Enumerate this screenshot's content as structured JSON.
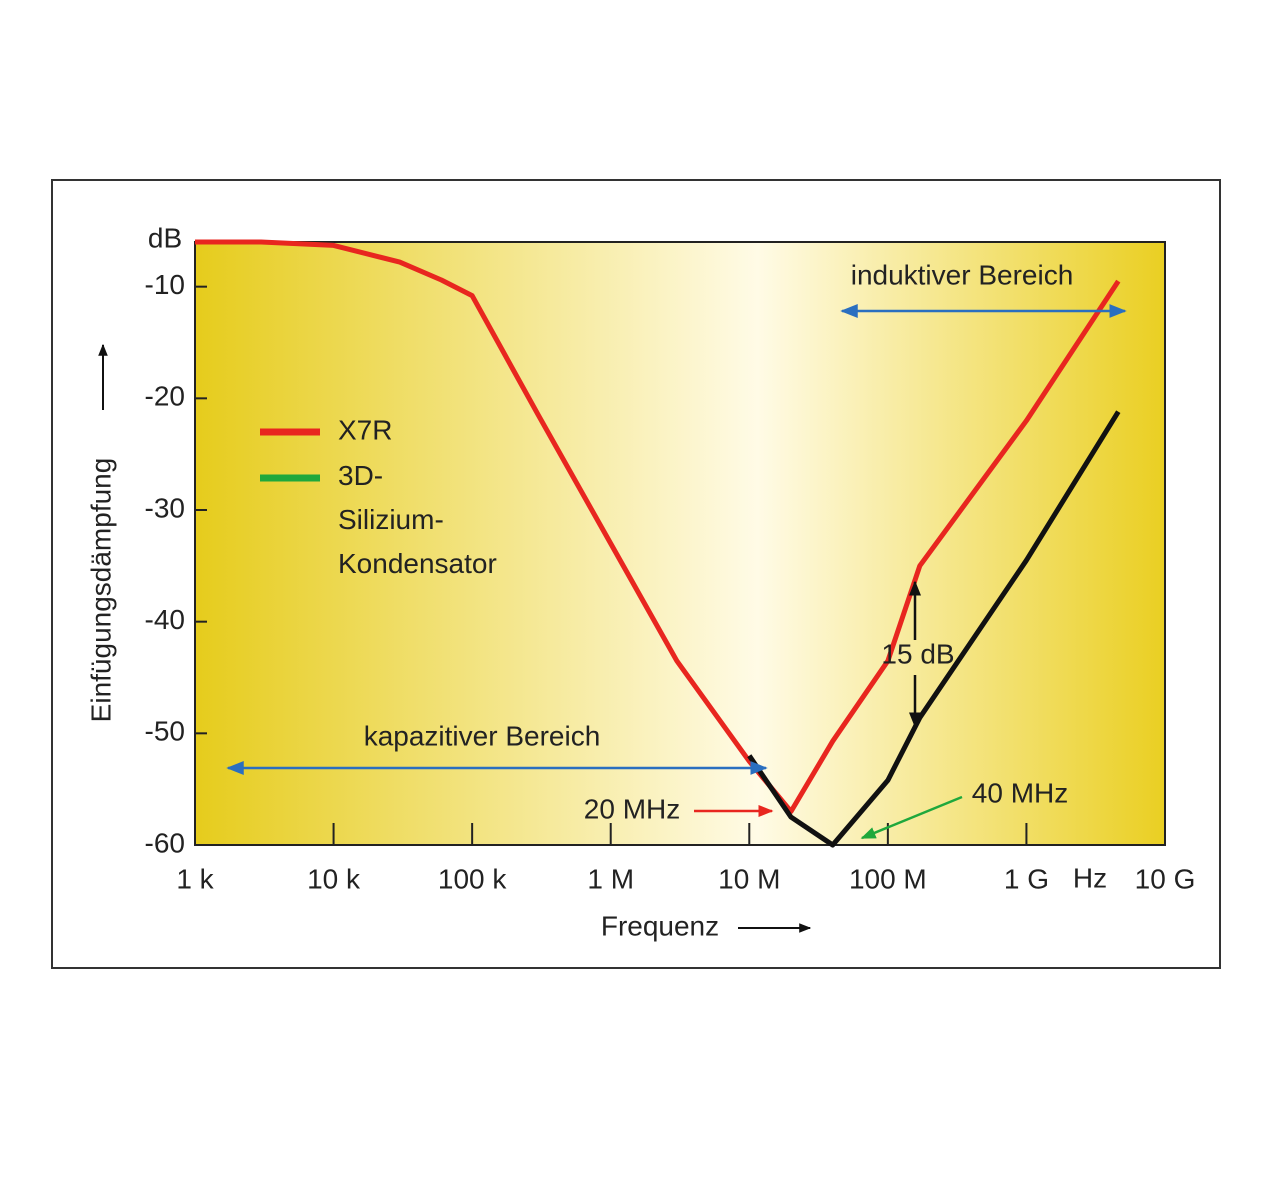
{
  "chart_data": {
    "type": "line",
    "y_unit": "dB",
    "x_unit": "Hz",
    "xlabel": "Frequenz",
    "ylabel": "Einfügungsdämpfung",
    "xscale": "log",
    "xlim": [
      1000,
      10000000000
    ],
    "ylim": [
      -60,
      -6
    ],
    "xticks": [
      {
        "value": 1000,
        "label": "1 k"
      },
      {
        "value": 10000,
        "label": "10 k"
      },
      {
        "value": 100000,
        "label": "100 k"
      },
      {
        "value": 1000000,
        "label": "1 M"
      },
      {
        "value": 10000000,
        "label": "10 M"
      },
      {
        "value": 100000000,
        "label": "100 M"
      },
      {
        "value": 1000000000,
        "label": "1 G"
      },
      {
        "value": 10000000000,
        "label": "10 G"
      }
    ],
    "yticks": [
      -60,
      -50,
      -40,
      -30,
      -20,
      -10
    ],
    "x": [
      1000,
      3000,
      10000,
      30000,
      60000,
      100000,
      300000,
      1000000,
      3000000,
      10000000,
      20000000,
      40000000,
      100000000,
      170000000,
      1000000000,
      4600000000
    ],
    "series": [
      {
        "name": "X7R",
        "color": "#e8261f",
        "legend_color": "#e8261f",
        "values": [
          -6,
          -6,
          -6.3,
          -7.8,
          -9.4,
          -10.8,
          -21.5,
          -33,
          -43.5,
          -52.5,
          -57,
          -50.7,
          -43.5,
          -35,
          -22,
          -9.5
        ]
      },
      {
        "name": "3D-Silizium-Kondensator",
        "color": "#111111",
        "legend_color": "#1fa83c",
        "values": [
          null,
          null,
          null,
          null,
          null,
          null,
          null,
          null,
          null,
          -52,
          -57.5,
          -60,
          -54.2,
          -48.6,
          -34.5,
          -21.2
        ]
      }
    ],
    "annotations": [
      {
        "text": "induktiver Bereich",
        "color": "#2a6fc0"
      },
      {
        "text": "kapazitiver Bereich",
        "color": "#2a6fc0"
      },
      {
        "text": "20 MHz",
        "color": "#e8261f"
      },
      {
        "text": "40 MHz",
        "color": "#1fa83c"
      },
      {
        "text": "15 dB",
        "color": "#111111"
      }
    ]
  }
}
